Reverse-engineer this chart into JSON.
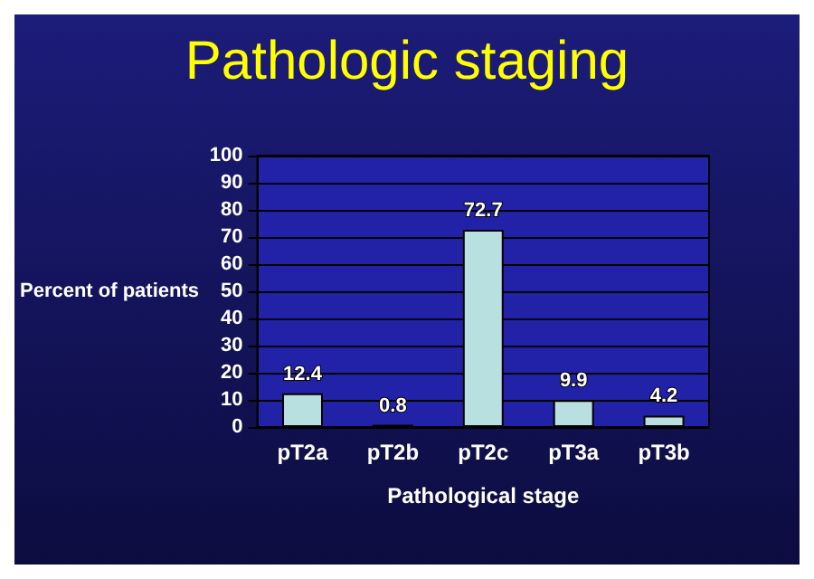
{
  "chart_data": {
    "type": "bar",
    "title": "Pathologic staging",
    "xlabel": "Pathological stage",
    "ylabel": "Percent of patients",
    "categories": [
      "pT2a",
      "pT2b",
      "pT2c",
      "pT3a",
      "pT3b"
    ],
    "values": [
      12.4,
      0.8,
      72.7,
      9.9,
      4.2
    ],
    "color": "#b8e0e0",
    "ylim": [
      0,
      100
    ],
    "yticks": [
      0,
      10,
      20,
      30,
      40,
      50,
      60,
      70,
      80,
      90,
      100
    ],
    "grid": "y",
    "data_labels": true
  }
}
